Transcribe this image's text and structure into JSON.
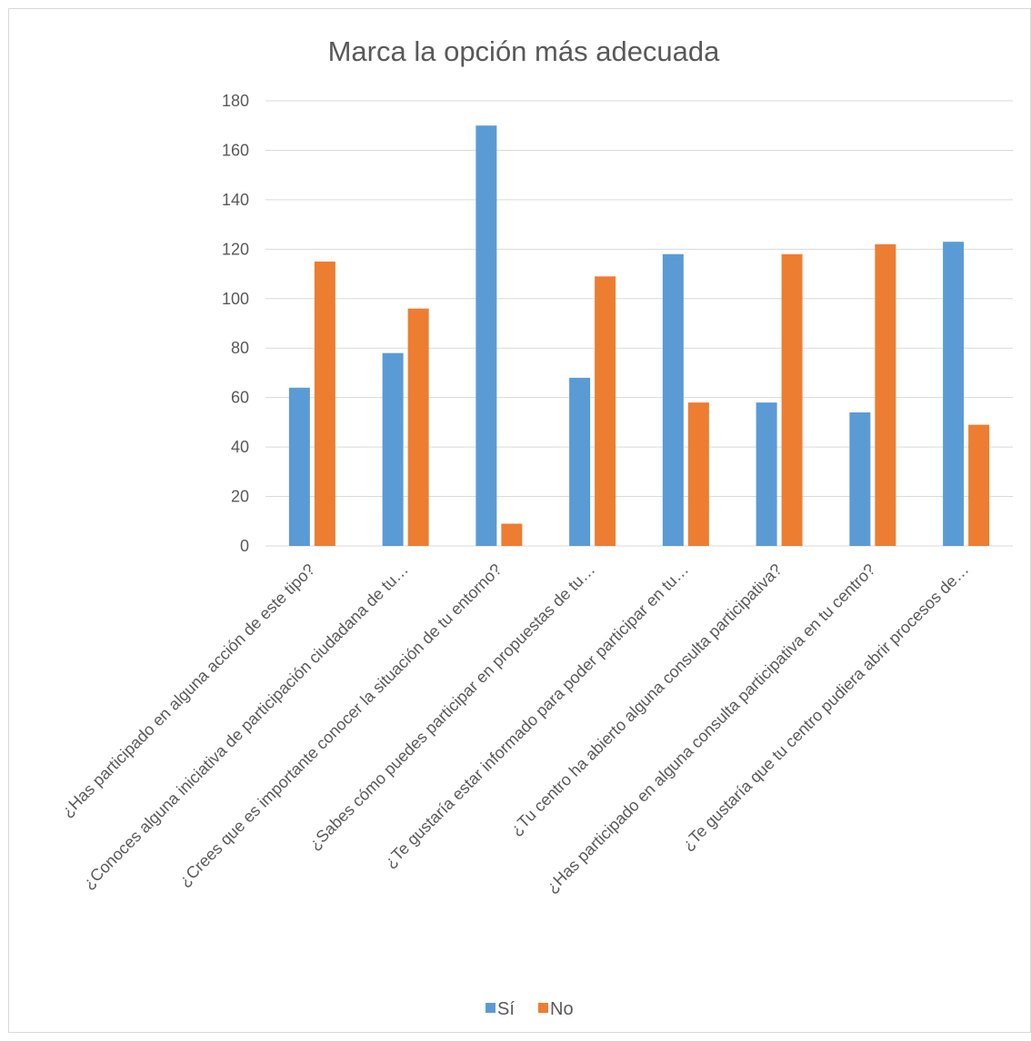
{
  "chart_data": {
    "type": "bar",
    "title": "Marca la opción más adecuada",
    "xlabel": "",
    "ylabel": "",
    "ylim": [
      0,
      180
    ],
    "yticks": [
      0,
      20,
      40,
      60,
      80,
      100,
      120,
      140,
      160,
      180
    ],
    "grid": true,
    "legend_position": "bottom",
    "categories": [
      "¿Has participado en alguna acción de este tipo?",
      "¿Conoces alguna iniciativa de participación ciudadana de tu…",
      "¿Crees que es importante conocer la situación de tu entorno?",
      "¿Sabes cómo puedes participar en propuestas de tu…",
      "¿Te gustaría estar informado para poder participar en tu…",
      "¿Tu centro ha abierto alguna consulta participativa?",
      "¿Has participado en alguna consulta participativa en tu centro?",
      "¿Te gustaría que tu centro pudiera abrir procesos de…"
    ],
    "series": [
      {
        "name": "Sí",
        "color": "#5b9bd5",
        "values": [
          64,
          78,
          170,
          68,
          118,
          58,
          54,
          123
        ]
      },
      {
        "name": "No",
        "color": "#ed7d31",
        "values": [
          115,
          96,
          9,
          109,
          58,
          118,
          122,
          49
        ]
      }
    ]
  }
}
